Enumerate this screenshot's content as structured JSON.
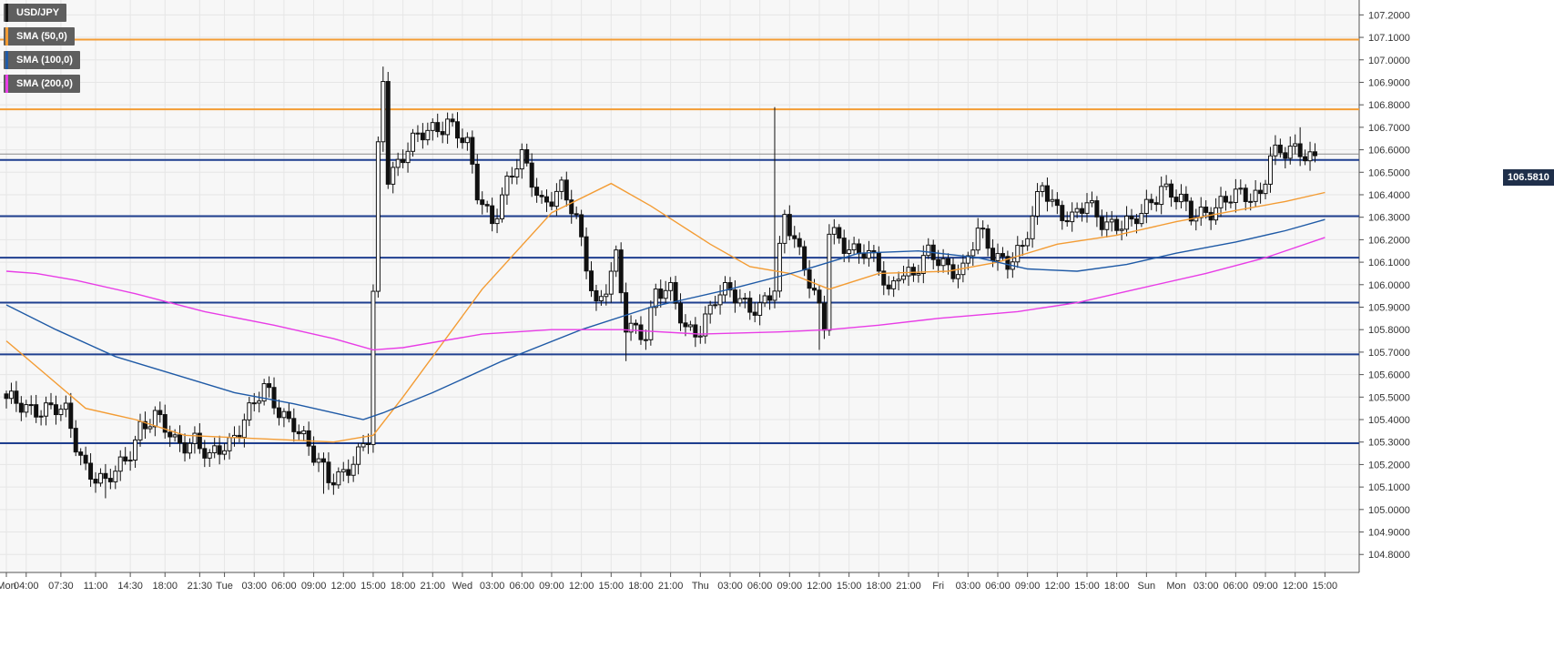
{
  "legend": [
    {
      "label": "USD/JPY",
      "color": "#111111"
    },
    {
      "label": "SMA (50,0)",
      "color": "#f39c34"
    },
    {
      "label": "SMA (100,0)",
      "color": "#1f5aa6"
    },
    {
      "label": "SMA (200,0)",
      "color": "#e83de6"
    }
  ],
  "current_price": "106.5810",
  "chart_data": {
    "type": "candlestick",
    "symbol": "USD/JPY",
    "ylim": [
      104.72,
      107.25
    ],
    "y_ticks": [
      "107.2000",
      "107.1000",
      "107.0000",
      "106.9000",
      "106.8000",
      "106.7000",
      "106.6000",
      "106.5000",
      "106.4000",
      "106.3000",
      "106.2000",
      "106.1000",
      "106.0000",
      "105.9000",
      "105.8000",
      "105.7000",
      "105.6000",
      "105.5000",
      "105.4000",
      "105.3000",
      "105.2000",
      "105.1000",
      "105.0000",
      "104.9000",
      "104.8000"
    ],
    "x_ticks": [
      {
        "label": "Mon",
        "i": 0
      },
      {
        "label": "04:00",
        "i": 4
      },
      {
        "label": "07:30",
        "i": 11
      },
      {
        "label": "11:00",
        "i": 18
      },
      {
        "label": "14:30",
        "i": 25
      },
      {
        "label": "18:00",
        "i": 32
      },
      {
        "label": "21:30",
        "i": 39
      },
      {
        "label": "Tue",
        "i": 44
      },
      {
        "label": "03:00",
        "i": 50
      },
      {
        "label": "06:00",
        "i": 56
      },
      {
        "label": "09:00",
        "i": 62
      },
      {
        "label": "12:00",
        "i": 68
      },
      {
        "label": "15:00",
        "i": 74
      },
      {
        "label": "18:00",
        "i": 80
      },
      {
        "label": "21:00",
        "i": 86
      },
      {
        "label": "Wed",
        "i": 92
      },
      {
        "label": "03:00",
        "i": 98
      },
      {
        "label": "06:00",
        "i": 104
      },
      {
        "label": "09:00",
        "i": 110
      },
      {
        "label": "12:00",
        "i": 116
      },
      {
        "label": "15:00",
        "i": 122
      },
      {
        "label": "18:00",
        "i": 128
      },
      {
        "label": "21:00",
        "i": 134
      },
      {
        "label": "Thu",
        "i": 140
      },
      {
        "label": "03:00",
        "i": 146
      },
      {
        "label": "06:00",
        "i": 152
      },
      {
        "label": "09:00",
        "i": 158
      },
      {
        "label": "12:00",
        "i": 164
      },
      {
        "label": "15:00",
        "i": 170
      },
      {
        "label": "18:00",
        "i": 176
      },
      {
        "label": "21:00",
        "i": 182
      },
      {
        "label": "Fri",
        "i": 188
      },
      {
        "label": "03:00",
        "i": 194
      },
      {
        "label": "06:00",
        "i": 200
      },
      {
        "label": "09:00",
        "i": 206
      },
      {
        "label": "12:00",
        "i": 212
      },
      {
        "label": "15:00",
        "i": 218
      },
      {
        "label": "18:00",
        "i": 224
      },
      {
        "label": "Sun",
        "i": 230
      },
      {
        "label": "Mon",
        "i": 236
      },
      {
        "label": "03:00",
        "i": 242
      },
      {
        "label": "06:00",
        "i": 248
      },
      {
        "label": "09:00",
        "i": 254
      },
      {
        "label": "12:00",
        "i": 260
      },
      {
        "label": "15:00",
        "i": 266
      }
    ],
    "horizontal_levels": [
      {
        "value": 107.09,
        "color": "#f39c34"
      },
      {
        "value": 106.78,
        "color": "#f39c34"
      },
      {
        "value": 106.555,
        "color": "#1f3f8f"
      },
      {
        "value": 106.305,
        "color": "#1f3f8f"
      },
      {
        "value": 106.12,
        "color": "#1f3f8f"
      },
      {
        "value": 105.92,
        "color": "#1f3f8f"
      },
      {
        "value": 105.69,
        "color": "#1f3f8f"
      },
      {
        "value": 105.295,
        "color": "#1f3f8f"
      }
    ],
    "anchors": [
      {
        "i": 0,
        "v": 105.47
      },
      {
        "i": 6,
        "v": 105.46
      },
      {
        "i": 12,
        "v": 105.42
      },
      {
        "i": 14,
        "v": 105.3
      },
      {
        "i": 16,
        "v": 105.2
      },
      {
        "i": 20,
        "v": 105.1
      },
      {
        "i": 24,
        "v": 105.22
      },
      {
        "i": 27,
        "v": 105.38
      },
      {
        "i": 30,
        "v": 105.4
      },
      {
        "i": 34,
        "v": 105.3
      },
      {
        "i": 38,
        "v": 105.32
      },
      {
        "i": 41,
        "v": 105.21
      },
      {
        "i": 45,
        "v": 105.3
      },
      {
        "i": 48,
        "v": 105.42
      },
      {
        "i": 52,
        "v": 105.52
      },
      {
        "i": 55,
        "v": 105.44
      },
      {
        "i": 58,
        "v": 105.4
      },
      {
        "i": 62,
        "v": 105.22
      },
      {
        "i": 65,
        "v": 105.14
      },
      {
        "i": 68,
        "v": 105.18
      },
      {
        "i": 71,
        "v": 105.23
      },
      {
        "i": 73,
        "v": 105.3
      },
      {
        "i": 75,
        "v": 106.6
      },
      {
        "i": 76,
        "v": 106.93
      },
      {
        "i": 77,
        "v": 106.5
      },
      {
        "i": 79,
        "v": 106.55
      },
      {
        "i": 81,
        "v": 106.6
      },
      {
        "i": 85,
        "v": 106.68
      },
      {
        "i": 89,
        "v": 106.74
      },
      {
        "i": 93,
        "v": 106.6
      },
      {
        "i": 95,
        "v": 106.4
      },
      {
        "i": 98,
        "v": 106.3
      },
      {
        "i": 101,
        "v": 106.45
      },
      {
        "i": 104,
        "v": 106.55
      },
      {
        "i": 108,
        "v": 106.38
      },
      {
        "i": 112,
        "v": 106.42
      },
      {
        "i": 115,
        "v": 106.27
      },
      {
        "i": 117,
        "v": 106.1
      },
      {
        "i": 119,
        "v": 105.92
      },
      {
        "i": 121,
        "v": 106.0
      },
      {
        "i": 123,
        "v": 106.1
      },
      {
        "i": 125,
        "v": 105.8
      },
      {
        "i": 129,
        "v": 105.8
      },
      {
        "i": 131,
        "v": 105.98
      },
      {
        "i": 134,
        "v": 105.95
      },
      {
        "i": 137,
        "v": 105.8
      },
      {
        "i": 140,
        "v": 105.82
      },
      {
        "i": 143,
        "v": 105.93
      },
      {
        "i": 146,
        "v": 105.96
      },
      {
        "i": 149,
        "v": 105.93
      },
      {
        "i": 152,
        "v": 105.9
      },
      {
        "i": 155,
        "v": 105.96
      },
      {
        "i": 157,
        "v": 106.3
      },
      {
        "i": 159,
        "v": 106.22
      },
      {
        "i": 161,
        "v": 106.1
      },
      {
        "i": 163,
        "v": 105.95
      },
      {
        "i": 165,
        "v": 105.8
      },
      {
        "i": 166,
        "v": 106.22
      },
      {
        "i": 168,
        "v": 106.2
      },
      {
        "i": 170,
        "v": 106.18
      },
      {
        "i": 173,
        "v": 106.15
      },
      {
        "i": 176,
        "v": 106.06
      },
      {
        "i": 178,
        "v": 105.95
      },
      {
        "i": 180,
        "v": 106.08
      },
      {
        "i": 183,
        "v": 106.05
      },
      {
        "i": 186,
        "v": 106.12
      },
      {
        "i": 190,
        "v": 106.09
      },
      {
        "i": 193,
        "v": 106.07
      },
      {
        "i": 196,
        "v": 106.22
      },
      {
        "i": 199,
        "v": 106.14
      },
      {
        "i": 202,
        "v": 106.12
      },
      {
        "i": 205,
        "v": 106.15
      },
      {
        "i": 207,
        "v": 106.28
      },
      {
        "i": 209,
        "v": 106.45
      },
      {
        "i": 212,
        "v": 106.35
      },
      {
        "i": 215,
        "v": 106.28
      },
      {
        "i": 218,
        "v": 106.35
      },
      {
        "i": 221,
        "v": 106.3
      },
      {
        "i": 224,
        "v": 106.27
      },
      {
        "i": 227,
        "v": 106.25
      },
      {
        "i": 230,
        "v": 106.35
      },
      {
        "i": 233,
        "v": 106.45
      },
      {
        "i": 236,
        "v": 106.38
      },
      {
        "i": 239,
        "v": 106.3
      },
      {
        "i": 242,
        "v": 106.34
      },
      {
        "i": 245,
        "v": 106.36
      },
      {
        "i": 248,
        "v": 106.38
      },
      {
        "i": 251,
        "v": 106.4
      },
      {
        "i": 253,
        "v": 106.42
      },
      {
        "i": 255,
        "v": 106.58
      },
      {
        "i": 258,
        "v": 106.57
      },
      {
        "i": 261,
        "v": 106.6
      },
      {
        "i": 264,
        "v": 106.58
      }
    ],
    "spikes": [
      {
        "i": 76,
        "high": 106.97
      },
      {
        "i": 74,
        "low": 105.31
      },
      {
        "i": 155,
        "high": 106.79
      },
      {
        "i": 164,
        "low": 105.71
      },
      {
        "i": 125,
        "low": 105.66
      },
      {
        "i": 20,
        "low": 105.05
      },
      {
        "i": 64,
        "low": 105.07
      },
      {
        "i": 261,
        "high": 106.7
      }
    ],
    "sma": [
      {
        "name": "SMA (50,0)",
        "color": "#f39c34",
        "points": [
          [
            0,
            105.75
          ],
          [
            8,
            105.6
          ],
          [
            16,
            105.45
          ],
          [
            26,
            105.4
          ],
          [
            36,
            105.33
          ],
          [
            46,
            105.32
          ],
          [
            56,
            105.31
          ],
          [
            66,
            105.3
          ],
          [
            74,
            105.33
          ],
          [
            80,
            105.5
          ],
          [
            96,
            105.98
          ],
          [
            110,
            106.32
          ],
          [
            122,
            106.45
          ],
          [
            130,
            106.35
          ],
          [
            142,
            106.18
          ],
          [
            150,
            106.08
          ],
          [
            158,
            106.05
          ],
          [
            166,
            105.98
          ],
          [
            176,
            106.05
          ],
          [
            190,
            106.06
          ],
          [
            200,
            106.1
          ],
          [
            212,
            106.18
          ],
          [
            224,
            106.22
          ],
          [
            236,
            106.28
          ],
          [
            248,
            106.33
          ],
          [
            258,
            106.37
          ],
          [
            266,
            106.41
          ]
        ]
      },
      {
        "name": "SMA (100,0)",
        "color": "#1f5aa6",
        "points": [
          [
            0,
            105.91
          ],
          [
            10,
            105.8
          ],
          [
            22,
            105.68
          ],
          [
            34,
            105.6
          ],
          [
            46,
            105.52
          ],
          [
            58,
            105.47
          ],
          [
            68,
            105.42
          ],
          [
            72,
            105.4
          ],
          [
            76,
            105.43
          ],
          [
            86,
            105.52
          ],
          [
            100,
            105.66
          ],
          [
            116,
            105.8
          ],
          [
            130,
            105.9
          ],
          [
            146,
            105.98
          ],
          [
            160,
            106.06
          ],
          [
            172,
            106.14
          ],
          [
            184,
            106.15
          ],
          [
            196,
            106.12
          ],
          [
            206,
            106.07
          ],
          [
            216,
            106.06
          ],
          [
            226,
            106.09
          ],
          [
            236,
            106.14
          ],
          [
            248,
            106.19
          ],
          [
            258,
            106.24
          ],
          [
            266,
            106.29
          ]
        ]
      },
      {
        "name": "SMA (200,0)",
        "color": "#e83de6",
        "points": [
          [
            0,
            106.06
          ],
          [
            6,
            106.05
          ],
          [
            14,
            106.02
          ],
          [
            26,
            105.96
          ],
          [
            40,
            105.88
          ],
          [
            54,
            105.82
          ],
          [
            66,
            105.76
          ],
          [
            74,
            105.71
          ],
          [
            80,
            105.72
          ],
          [
            96,
            105.78
          ],
          [
            110,
            105.8
          ],
          [
            124,
            105.8
          ],
          [
            140,
            105.78
          ],
          [
            156,
            105.79
          ],
          [
            166,
            105.8
          ],
          [
            176,
            105.82
          ],
          [
            188,
            105.85
          ],
          [
            204,
            105.88
          ],
          [
            216,
            105.92
          ],
          [
            228,
            105.98
          ],
          [
            242,
            106.05
          ],
          [
            254,
            106.12
          ],
          [
            266,
            106.21
          ]
        ]
      }
    ],
    "current_price": 106.581,
    "grid": true
  }
}
